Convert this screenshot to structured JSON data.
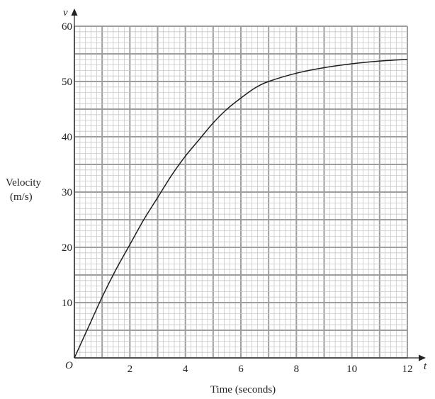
{
  "chart_data": {
    "type": "line",
    "xlabel": "Time (seconds)",
    "ylabel": [
      "Velocity",
      "(m/s)"
    ],
    "x_axis_letter": "t",
    "y_axis_letter": "v",
    "origin_label": "O",
    "xlim": [
      0,
      12
    ],
    "ylim": [
      0,
      60
    ],
    "x_ticks": [
      "2",
      "4",
      "6",
      "8",
      "10",
      "12"
    ],
    "y_ticks": [
      "10",
      "20",
      "30",
      "40",
      "50",
      "60"
    ],
    "grid": true,
    "series": [
      {
        "x": [
          0,
          0.5,
          1,
          1.5,
          2,
          2.5,
          3,
          3.5,
          4,
          4.5,
          5,
          5.5,
          6,
          6.5,
          7,
          8,
          9,
          10,
          11,
          12
        ],
        "y": [
          0,
          5.5,
          11,
          16,
          20.5,
          25,
          29,
          33,
          36.5,
          39.5,
          42.5,
          45,
          47,
          48.8,
          50,
          51.5,
          52.5,
          53.2,
          53.7,
          54
        ]
      }
    ]
  }
}
